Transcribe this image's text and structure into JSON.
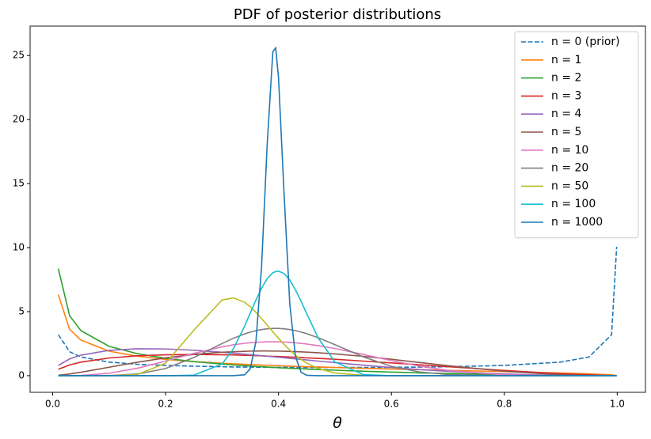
{
  "chart_data": {
    "type": "line",
    "title": "PDF of posterior distributions",
    "x_label": "θ",
    "x": [
      0.01,
      0.03,
      0.05,
      0.1,
      0.15,
      0.2,
      0.25,
      0.3,
      0.32,
      0.34,
      0.35,
      0.36,
      0.37,
      0.38,
      0.39,
      0.395,
      0.4,
      0.41,
      0.42,
      0.43,
      0.44,
      0.45,
      0.47,
      0.5,
      0.55,
      0.6,
      0.65,
      0.7,
      0.8,
      0.9,
      0.95,
      0.99,
      0.999
    ],
    "series": [
      {
        "name": "n = 0 (prior)",
        "color": "#1f77b4",
        "linestyle": "dashed",
        "values": [
          3.2,
          1.87,
          1.46,
          1.06,
          0.89,
          0.8,
          0.74,
          0.7,
          0.68,
          0.67,
          0.67,
          0.66,
          0.66,
          0.66,
          0.65,
          0.65,
          0.65,
          0.65,
          0.65,
          0.64,
          0.64,
          0.64,
          0.64,
          0.64,
          0.64,
          0.65,
          0.67,
          0.7,
          0.8,
          1.06,
          1.46,
          3.2,
          10.07
        ]
      },
      {
        "name": "n = 1",
        "color": "#ff7f0e",
        "values": [
          6.33,
          3.62,
          2.78,
          1.91,
          1.52,
          1.27,
          1.1,
          0.97,
          0.93,
          0.89,
          0.87,
          0.85,
          0.83,
          0.81,
          0.8,
          0.79,
          0.78,
          0.76,
          0.75,
          0.73,
          0.72,
          0.7,
          0.68,
          0.64,
          0.58,
          0.52,
          0.47,
          0.42,
          0.32,
          0.21,
          0.15,
          0.06,
          0.02
        ]
      },
      {
        "name": "n = 2",
        "color": "#2ca02c",
        "values": [
          8.36,
          4.68,
          3.52,
          2.29,
          1.72,
          1.36,
          1.1,
          0.91,
          0.84,
          0.78,
          0.75,
          0.72,
          0.7,
          0.67,
          0.65,
          0.64,
          0.62,
          0.6,
          0.58,
          0.56,
          0.54,
          0.52,
          0.48,
          0.43,
          0.35,
          0.28,
          0.22,
          0.17,
          0.09,
          0.03,
          0.01,
          0,
          0
        ]
      },
      {
        "name": "n = 3",
        "color": "#d62728",
        "values": [
          0.5,
          0.84,
          1.06,
          1.38,
          1.55,
          1.63,
          1.66,
          1.63,
          1.62,
          1.59,
          1.58,
          1.56,
          1.55,
          1.53,
          1.51,
          1.51,
          1.5,
          1.48,
          1.46,
          1.44,
          1.42,
          1.39,
          1.35,
          1.28,
          1.14,
          1,
          0.85,
          0.7,
          0.41,
          0.15,
          0.06,
          0.01,
          0
        ]
      },
      {
        "name": "n = 4",
        "color": "#9467bd",
        "values": [
          0.8,
          1.31,
          1.6,
          1.98,
          2.1,
          2.09,
          1.99,
          1.83,
          1.76,
          1.68,
          1.64,
          1.6,
          1.56,
          1.52,
          1.48,
          1.46,
          1.44,
          1.4,
          1.35,
          1.31,
          1.27,
          1.23,
          1.14,
          1.02,
          0.82,
          0.64,
          0.48,
          0.34,
          0.13,
          0.02,
          0,
          0,
          0
        ]
      },
      {
        "name": "n = 5",
        "color": "#8c564b",
        "values": [
          0.03,
          0.13,
          0.27,
          0.66,
          1.05,
          1.39,
          1.66,
          1.83,
          1.87,
          1.9,
          1.92,
          1.92,
          1.93,
          1.93,
          1.92,
          1.92,
          1.92,
          1.91,
          1.89,
          1.88,
          1.86,
          1.84,
          1.79,
          1.7,
          1.51,
          1.28,
          1.03,
          0.78,
          0.35,
          0.07,
          0.01,
          0,
          0
        ]
      },
      {
        "name": "n = 10",
        "color": "#e377c2",
        "values": [
          0,
          0,
          0.02,
          0.19,
          0.58,
          1.14,
          1.74,
          2.25,
          2.41,
          2.53,
          2.57,
          2.6,
          2.63,
          2.64,
          2.65,
          2.65,
          2.64,
          2.63,
          2.6,
          2.57,
          2.52,
          2.47,
          2.35,
          2.12,
          1.66,
          1.17,
          0.75,
          0.41,
          0.07,
          0,
          0,
          0,
          0
        ]
      },
      {
        "name": "n = 20",
        "color": "#7f7f7f",
        "values": [
          0,
          0,
          0,
          0.01,
          0.13,
          0.56,
          1.42,
          2.51,
          2.92,
          3.26,
          3.4,
          3.52,
          3.6,
          3.66,
          3.69,
          3.69,
          3.69,
          3.66,
          3.6,
          3.52,
          3.41,
          3.28,
          2.97,
          2.42,
          1.47,
          0.73,
          0.29,
          0.09,
          0,
          0,
          0,
          0,
          0
        ]
      },
      {
        "name": "n = 50",
        "color": "#bcbd22",
        "values": [
          0,
          0,
          0,
          0,
          0.09,
          0.97,
          3.55,
          5.91,
          6.08,
          5.73,
          5.38,
          4.95,
          4.46,
          3.95,
          3.43,
          3.17,
          2.92,
          2.44,
          2,
          1.6,
          1.27,
          0.98,
          0.56,
          0.21,
          0.03,
          0,
          0,
          0,
          0,
          0,
          0,
          0,
          0
        ]
      },
      {
        "name": "n = 100",
        "color": "#17becf",
        "values": [
          0,
          0,
          0,
          0,
          0,
          0,
          0.04,
          0.91,
          2.09,
          3.87,
          4.9,
          5.91,
          6.83,
          7.58,
          8.04,
          8.13,
          8.17,
          7.97,
          7.47,
          6.71,
          5.81,
          4.84,
          2.97,
          1.07,
          0.09,
          0,
          0,
          0,
          0,
          0,
          0,
          0,
          0
        ]
      },
      {
        "name": "n = 1000",
        "color": "#1f77b4",
        "values": [
          0,
          0,
          0,
          0,
          0,
          0,
          0,
          0,
          0,
          0.07,
          0.54,
          2.67,
          8.5,
          18.1,
          25.3,
          25.6,
          23.3,
          14.1,
          5.6,
          1.5,
          0.26,
          0.03,
          0,
          0,
          0,
          0,
          0,
          0,
          0,
          0,
          0,
          0,
          0
        ]
      }
    ],
    "xlim": [
      -0.04,
      1.05
    ],
    "ylim": [
      -1.3,
      27.3
    ],
    "xticks": [
      {
        "value": 0,
        "label": "0.0"
      },
      0.2,
      0.4,
      0.6,
      0.8,
      {
        "value": 1,
        "label": "1.0"
      }
    ],
    "yticks": [
      0,
      5,
      10,
      15,
      20,
      25
    ],
    "grid": false,
    "legend": "upper right"
  }
}
